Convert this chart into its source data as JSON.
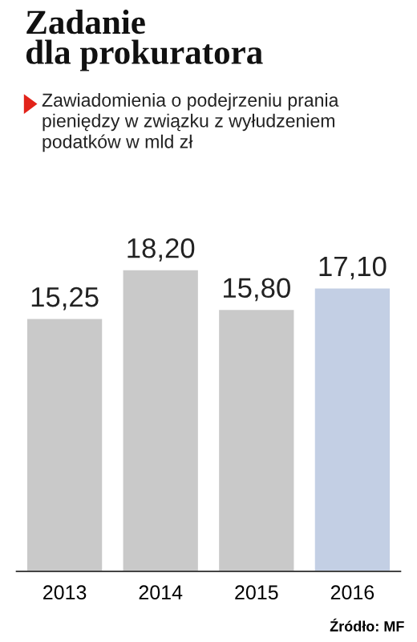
{
  "chart_data": {
    "type": "bar",
    "title": "Zadanie\ndla prokuratora",
    "subtitle": "Zawiadomienia o podejrzeniu prania pieniędzy w związku z wyłudzeniem podatków w mld zł",
    "categories": [
      "2013",
      "2014",
      "2015",
      "2016"
    ],
    "values": [
      15.25,
      18.2,
      15.8,
      17.1
    ],
    "colors": [
      "#c9c9c9",
      "#c9c9c9",
      "#c9c9c9",
      "#c3cfe4"
    ],
    "value_labels": [
      "15,25",
      "18,20",
      "15,80",
      "17,10"
    ],
    "annotations": [
      "Źródło: MF"
    ],
    "grid": false,
    "legend": false
  }
}
